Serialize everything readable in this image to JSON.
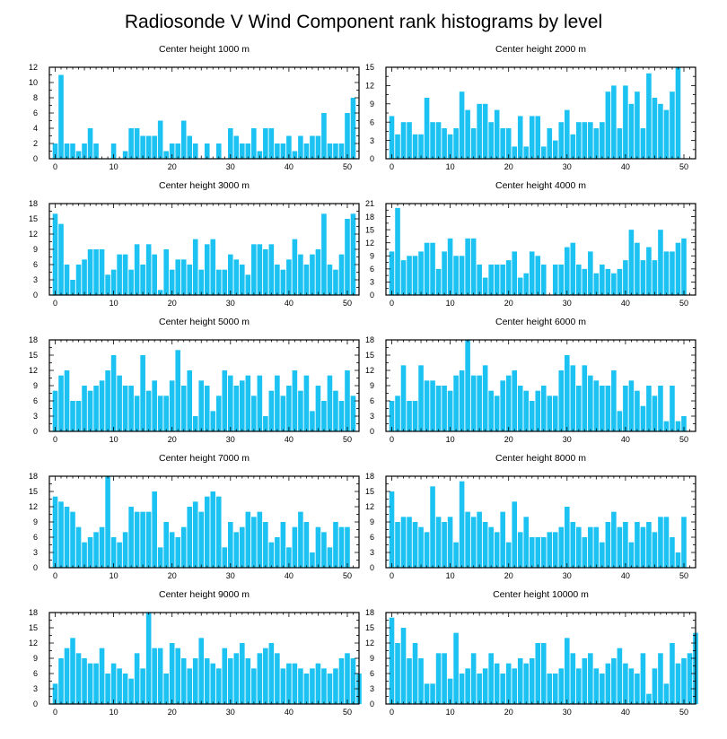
{
  "title": "Radiosonde V Wind Component rank histograms by level",
  "colors": {
    "bar": "#1CC3F2",
    "frame": "#000000",
    "background": "#ffffff"
  },
  "chart_data": [
    {
      "type": "bar",
      "title": "Center height 1000 m",
      "xlim": [
        -1,
        52
      ],
      "ylim": [
        0,
        12
      ],
      "xticks": [
        0,
        10,
        20,
        30,
        40,
        50
      ],
      "yticks": [
        0,
        2,
        4,
        6,
        8,
        10,
        12
      ],
      "values": [
        2,
        11,
        2,
        2,
        1,
        2,
        4,
        2,
        0,
        0,
        2,
        0,
        1,
        4,
        4,
        3,
        3,
        3,
        5,
        1,
        2,
        2,
        5,
        3,
        2,
        0,
        2,
        0,
        2,
        0,
        4,
        3,
        2,
        2,
        4,
        1,
        4,
        4,
        2,
        2,
        3,
        1,
        3,
        2,
        3,
        3,
        6,
        2,
        2,
        2,
        6,
        8
      ]
    },
    {
      "type": "bar",
      "title": "Center height 2000 m",
      "xlim": [
        -1,
        52
      ],
      "ylim": [
        0,
        15
      ],
      "xticks": [
        0,
        10,
        20,
        30,
        40,
        50
      ],
      "yticks": [
        0,
        3,
        6,
        9,
        12,
        15
      ],
      "values": [
        7,
        4,
        6,
        6,
        4,
        4,
        10,
        6,
        6,
        5,
        4,
        5,
        11,
        8,
        5,
        9,
        9,
        6,
        8,
        5,
        5,
        2,
        7,
        2,
        7,
        7,
        2,
        5,
        3,
        6,
        8,
        4,
        6,
        6,
        6,
        5,
        6,
        11,
        12,
        5,
        12,
        9,
        11,
        5,
        14,
        10,
        9,
        8,
        11,
        15
      ]
    },
    {
      "type": "bar",
      "title": "Center height 3000 m",
      "xlim": [
        -1,
        52
      ],
      "ylim": [
        0,
        18
      ],
      "xticks": [
        0,
        10,
        20,
        30,
        40,
        50
      ],
      "yticks": [
        0,
        3,
        6,
        9,
        12,
        15,
        18
      ],
      "values": [
        16,
        14,
        6,
        3,
        6,
        7,
        9,
        9,
        9,
        4,
        5,
        8,
        8,
        5,
        10,
        6,
        10,
        8,
        1,
        9,
        5,
        7,
        7,
        6,
        11,
        5,
        10,
        11,
        5,
        5,
        8,
        7,
        6,
        4,
        10,
        10,
        9,
        10,
        6,
        5,
        7,
        11,
        8,
        6,
        8,
        9,
        16,
        6,
        5,
        8,
        15,
        16
      ]
    },
    {
      "type": "bar",
      "title": "Center height 4000 m",
      "xlim": [
        -1,
        52
      ],
      "ylim": [
        0,
        21
      ],
      "xticks": [
        0,
        10,
        20,
        30,
        40,
        50
      ],
      "yticks": [
        0,
        3,
        6,
        9,
        12,
        15,
        18,
        21
      ],
      "values": [
        10,
        20,
        8,
        9,
        9,
        10,
        12,
        12,
        6,
        10,
        13,
        9,
        9,
        13,
        13,
        7,
        4,
        7,
        7,
        7,
        8,
        10,
        4,
        5,
        10,
        9,
        7,
        0,
        7,
        7,
        11,
        12,
        7,
        6,
        10,
        5,
        7,
        6,
        5,
        6,
        8,
        15,
        12,
        8,
        11,
        8,
        15,
        10,
        10,
        12,
        13
      ]
    },
    {
      "type": "bar",
      "title": "Center height 5000 m",
      "xlim": [
        -1,
        52
      ],
      "ylim": [
        0,
        18
      ],
      "xticks": [
        0,
        10,
        20,
        30,
        40,
        50
      ],
      "yticks": [
        0,
        3,
        6,
        9,
        12,
        15,
        18
      ],
      "values": [
        8,
        11,
        12,
        6,
        6,
        9,
        8,
        9,
        10,
        12,
        15,
        11,
        9,
        9,
        7,
        15,
        8,
        10,
        7,
        7,
        10,
        16,
        9,
        12,
        3,
        10,
        9,
        4,
        7,
        12,
        11,
        9,
        10,
        11,
        7,
        11,
        3,
        8,
        11,
        7,
        9,
        12,
        8,
        11,
        4,
        9,
        6,
        11,
        8,
        6,
        12,
        7
      ]
    },
    {
      "type": "bar",
      "title": "Center height 6000 m",
      "xlim": [
        -1,
        52
      ],
      "ylim": [
        0,
        18
      ],
      "xticks": [
        0,
        10,
        20,
        30,
        40,
        50
      ],
      "yticks": [
        0,
        3,
        6,
        9,
        12,
        15,
        18
      ],
      "values": [
        6,
        7,
        13,
        6,
        6,
        13,
        10,
        10,
        9,
        9,
        8,
        11,
        12,
        18,
        11,
        11,
        13,
        8,
        7,
        10,
        11,
        12,
        9,
        8,
        6,
        8,
        9,
        7,
        7,
        12,
        15,
        13,
        9,
        13,
        11,
        10,
        9,
        9,
        12,
        4,
        9,
        10,
        8,
        5,
        9,
        7,
        9,
        2,
        9,
        2,
        3
      ]
    },
    {
      "type": "bar",
      "title": "Center height 7000 m",
      "xlim": [
        -1,
        52
      ],
      "ylim": [
        0,
        18
      ],
      "xticks": [
        0,
        10,
        20,
        30,
        40,
        50
      ],
      "yticks": [
        0,
        3,
        6,
        9,
        12,
        15,
        18
      ],
      "values": [
        14,
        13,
        12,
        11,
        8,
        5,
        6,
        7,
        8,
        18,
        6,
        5,
        7,
        12,
        11,
        11,
        11,
        15,
        4,
        9,
        7,
        6,
        8,
        12,
        13,
        11,
        14,
        15,
        14,
        4,
        9,
        7,
        8,
        11,
        10,
        11,
        9,
        5,
        6,
        9,
        4,
        8,
        11,
        9,
        3,
        8,
        7,
        4,
        9,
        8,
        8
      ]
    },
    {
      "type": "bar",
      "title": "Center height 8000 m",
      "xlim": [
        -1,
        52
      ],
      "ylim": [
        0,
        18
      ],
      "xticks": [
        0,
        10,
        20,
        30,
        40,
        50
      ],
      "yticks": [
        0,
        3,
        6,
        9,
        12,
        15,
        18
      ],
      "values": [
        15,
        9,
        10,
        10,
        9,
        8,
        7,
        16,
        10,
        9,
        10,
        5,
        17,
        11,
        10,
        11,
        9,
        8,
        7,
        11,
        5,
        13,
        7,
        10,
        6,
        6,
        6,
        7,
        7,
        8,
        12,
        9,
        8,
        6,
        8,
        8,
        5,
        9,
        11,
        8,
        9,
        5,
        9,
        8,
        9,
        7,
        10,
        10,
        6,
        3,
        10
      ]
    },
    {
      "type": "bar",
      "title": "Center height 9000 m",
      "xlim": [
        -1,
        52
      ],
      "ylim": [
        0,
        18
      ],
      "xticks": [
        0,
        10,
        20,
        30,
        40,
        50
      ],
      "yticks": [
        0,
        3,
        6,
        9,
        12,
        15,
        18
      ],
      "values": [
        4,
        9,
        11,
        13,
        10,
        9,
        8,
        8,
        11,
        6,
        8,
        7,
        6,
        5,
        10,
        7,
        18,
        11,
        11,
        6,
        12,
        11,
        9,
        7,
        9,
        13,
        9,
        8,
        7,
        11,
        9,
        10,
        12,
        9,
        7,
        10,
        11,
        12,
        10,
        7,
        8,
        8,
        7,
        6,
        7,
        8,
        7,
        6,
        7,
        9,
        10,
        9,
        6
      ]
    },
    {
      "type": "bar",
      "title": "Center height 10000 m",
      "xlim": [
        -1,
        52
      ],
      "ylim": [
        0,
        18
      ],
      "xticks": [
        0,
        10,
        20,
        30,
        40,
        50
      ],
      "yticks": [
        0,
        3,
        6,
        9,
        12,
        15,
        18
      ],
      "values": [
        17,
        12,
        15,
        9,
        12,
        9,
        4,
        4,
        10,
        10,
        5,
        14,
        6,
        7,
        10,
        6,
        7,
        10,
        8,
        6,
        8,
        7,
        9,
        8,
        9,
        12,
        12,
        6,
        6,
        7,
        13,
        10,
        7,
        9,
        10,
        7,
        6,
        8,
        9,
        11,
        8,
        7,
        6,
        10,
        2,
        7,
        10,
        4,
        12,
        8,
        9,
        10,
        14
      ]
    }
  ]
}
